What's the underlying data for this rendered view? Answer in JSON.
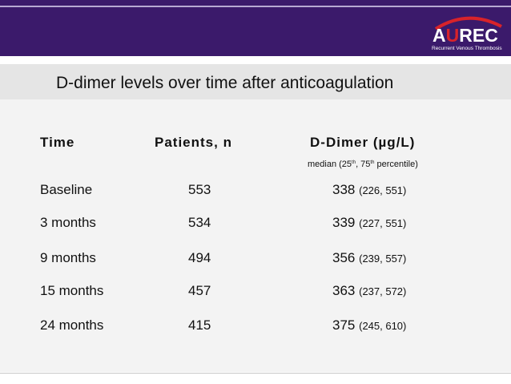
{
  "logo": {
    "text_main": "A",
    "text_accent": "U",
    "text_rest": "REC",
    "subtitle": "Recurrent Venous Thrombosis"
  },
  "title": "D-dimer levels over time after anticoagulation",
  "table": {
    "headers": {
      "time": "Time",
      "patients": "Patients, n",
      "ddimer": "D-Dimer (µg/L)"
    },
    "subnote": {
      "prefix": "median (25",
      "sup1": "th",
      "middle": ", 75",
      "sup2": "th",
      "suffix": " percentile)"
    },
    "rows": [
      {
        "time": "Baseline",
        "n": "553",
        "median": "338",
        "ci": "(226, 551)"
      },
      {
        "time": "3 months",
        "n": "534",
        "median": "339",
        "ci": "(227, 551)"
      },
      {
        "time": "9 months",
        "n": "494",
        "median": "356",
        "ci": "(239, 557)"
      },
      {
        "time": "15 months",
        "n": "457",
        "median": "363",
        "ci": "(237, 572)"
      },
      {
        "time": "24 months",
        "n": "415",
        "median": "375",
        "ci": "(245, 610)"
      }
    ]
  },
  "colors": {
    "header_bar": "#3b1a6b",
    "logo_accent": "#d8232a",
    "title_band": "#e5e5e5",
    "content_bg": "#f3f3f3"
  }
}
